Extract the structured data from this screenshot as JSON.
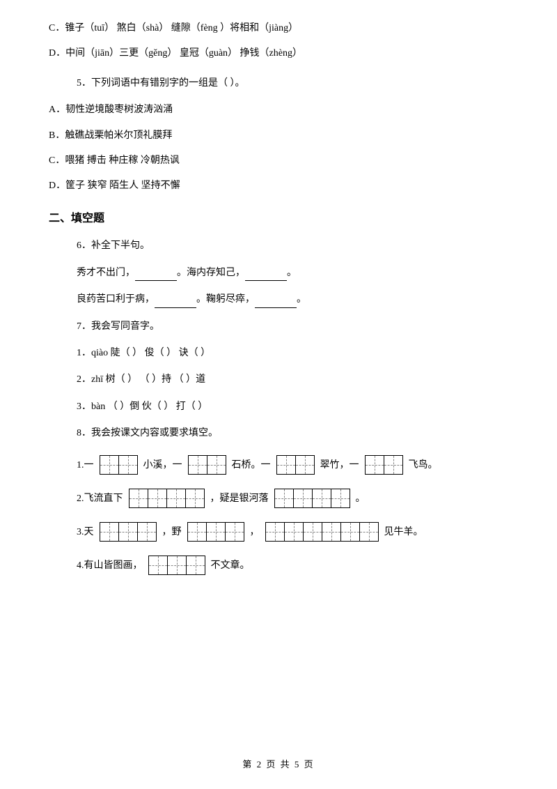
{
  "options_c": "C．锥子（tuī） 煞白（shà）  缝隙（fèng ）将相和（jiàng）",
  "options_d": "D．中间（jiān）三更（gěng）  皇冠（guàn） 挣钱（zhèng）",
  "q5": "5．下列词语中有错别字的一组是（    ）。",
  "q5_a": "A．韧性逆境酸枣树波涛汹涌",
  "q5_b": "B．触礁战栗帕米尔顶礼膜拜",
  "q5_c": "C．喂猪 搏击 种庄稼 冷朝热讽",
  "q5_d": "D．筐子 狭窄 陌生人 坚持不懈",
  "section2": "二、填空题",
  "q6": "6．补全下半句。",
  "q6_line1_a": "秀才不出门，",
  "q6_line1_b": "。海内存知己，",
  "q6_line1_c": "。",
  "q6_line2_a": "良药苦口利于病，",
  "q6_line2_b": "。鞠躬尽瘁，",
  "q6_line2_c": "。",
  "q7": "7．我会写同音字。",
  "q7_1": "1．qiào 陡（    ） 俊（    ） 诀（    ）",
  "q7_2": "2．zhī  树（    ） （    ）持  （    ）道",
  "q7_3": "3．bàn  （    ）倒 伙（    ） 打（    ）",
  "q8": "8．我会按课文内容或要求填空。",
  "q8_1_prefix": "1.一",
  "q8_1_xiaoxi": "小溪，一",
  "q8_1_shiqiao": "石桥。一",
  "q8_1_cuizhu": "翠竹，一",
  "q8_1_feiniao": "飞鸟。",
  "q8_2_prefix": "2.飞流直下",
  "q8_2_mid": "，疑是银河落",
  "q8_2_end": "。",
  "q8_3_prefix": "3.天",
  "q8_3_ye": "，野",
  "q8_3_comma": "，",
  "q8_3_end": "见牛羊。",
  "q8_4_prefix": "4.有山皆图画，",
  "q8_4_end": "不文章。",
  "footer": "第 2 页 共 5 页"
}
